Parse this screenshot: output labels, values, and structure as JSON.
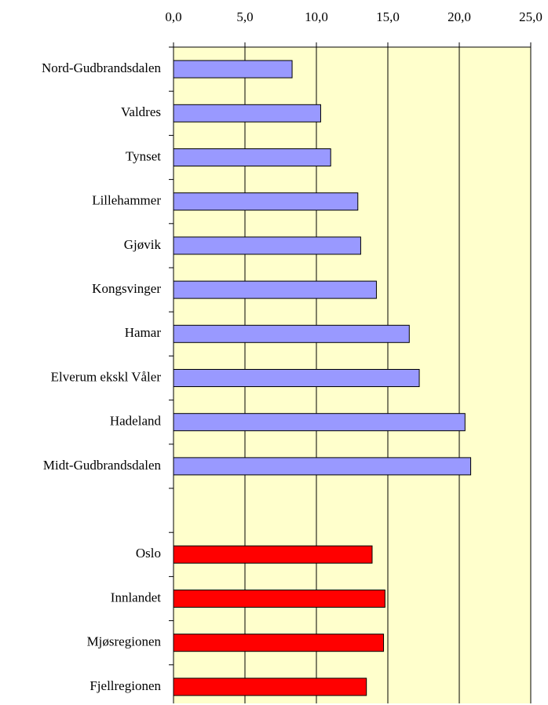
{
  "chart_data": {
    "type": "barh",
    "categories": [
      "Nord-Gudbrandsdalen",
      "Valdres",
      "Tynset",
      "Lillehammer",
      "Gjøvik",
      "Kongsvinger",
      "Hamar",
      "Elverum ekskl Våler",
      "Hadeland",
      "Midt-Gudbrandsdalen",
      null,
      "Oslo",
      "Innlandet",
      "Mjøsregionen",
      "Fjellregionen"
    ],
    "values": [
      8.3,
      10.3,
      11.0,
      12.9,
      13.1,
      14.2,
      16.5,
      17.2,
      20.4,
      20.8,
      null,
      13.9,
      14.8,
      14.7,
      13.5
    ],
    "colors": [
      "#9999ff",
      "#9999ff",
      "#9999ff",
      "#9999ff",
      "#9999ff",
      "#9999ff",
      "#9999ff",
      "#9999ff",
      "#9999ff",
      "#9999ff",
      null,
      "#ff0000",
      "#ff0000",
      "#ff0000",
      "#ff0000"
    ],
    "xlim": [
      0,
      25
    ],
    "xticks": [
      {
        "value": 0,
        "label": "0,0"
      },
      {
        "value": 5,
        "label": "5,0"
      },
      {
        "value": 10,
        "label": "10,0"
      },
      {
        "value": 15,
        "label": "15,0"
      },
      {
        "value": 20,
        "label": "20,0"
      },
      {
        "value": 25,
        "label": "25,0"
      }
    ],
    "grid": true,
    "background": "#ffffcc"
  }
}
